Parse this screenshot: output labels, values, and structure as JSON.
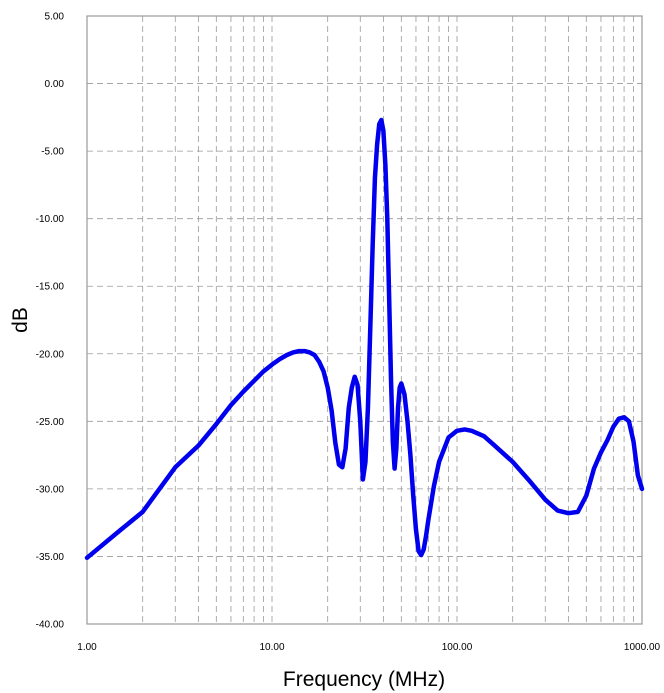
{
  "chart_data": {
    "type": "line",
    "title": "",
    "xlabel": "Frequency (MHz)",
    "ylabel": "dB",
    "x_scale": "log",
    "xlim": [
      1,
      1000
    ],
    "ylim": [
      -40,
      5
    ],
    "x_tick_labels": [
      "1.00",
      "10.00",
      "100.00",
      "1000.00"
    ],
    "y_tick_labels": [
      "5.00",
      "0.00",
      "-5.00",
      "-10.00",
      "-15.00",
      "-20.00",
      "-25.00",
      "-30.00",
      "-35.00",
      "-40.00"
    ],
    "grid": true,
    "grid_style": "dashed",
    "legend": "none",
    "series": [
      {
        "color": "#0000ee",
        "x": [
          1.0,
          1.5,
          2.0,
          3.0,
          4.0,
          5.0,
          6.0,
          7.0,
          8.0,
          9.0,
          10.0,
          11.0,
          12.0,
          13.0,
          14.0,
          15.0,
          16.0,
          17.0,
          18.0,
          19.0,
          20.0,
          21.0,
          22.0,
          23.0,
          24.0,
          25.0,
          26.0,
          27.0,
          28.0,
          29.0,
          30.0,
          31.0,
          32.0,
          33.0,
          34.0,
          35.0,
          36.0,
          37.0,
          38.0,
          39.0,
          40.0,
          41.0,
          42.0,
          43.0,
          44.0,
          45.0,
          46.0,
          47.0,
          48.0,
          49.0,
          50.0,
          52.0,
          54.0,
          56.0,
          58.0,
          60.0,
          62.0,
          64.0,
          66.0,
          68.0,
          70.0,
          75.0,
          80.0,
          90.0,
          100.0,
          110.0,
          120.0,
          140.0,
          160.0,
          200.0,
          250.0,
          300.0,
          350.0,
          400.0,
          450.0,
          500.0,
          550.0,
          600.0,
          650.0,
          700.0,
          750.0,
          800.0,
          850.0,
          900.0,
          950.0,
          1000.0
        ],
        "y": [
          -35.1,
          -33.1,
          -31.7,
          -28.4,
          -26.8,
          -25.2,
          -23.8,
          -22.8,
          -22.0,
          -21.3,
          -20.8,
          -20.4,
          -20.1,
          -19.9,
          -19.8,
          -19.8,
          -19.9,
          -20.1,
          -20.6,
          -21.3,
          -22.5,
          -24.2,
          -26.6,
          -28.2,
          -28.4,
          -27.0,
          -24.0,
          -22.5,
          -21.7,
          -22.3,
          -25.0,
          -29.3,
          -28.0,
          -24.0,
          -18.0,
          -12.0,
          -7.0,
          -4.5,
          -3.0,
          -2.7,
          -3.5,
          -6.0,
          -10.0,
          -16.0,
          -22.0,
          -26.5,
          -28.5,
          -27.0,
          -24.0,
          -22.5,
          -22.2,
          -23.0,
          -25.0,
          -27.5,
          -30.5,
          -33.0,
          -34.6,
          -34.9,
          -34.5,
          -33.5,
          -32.3,
          -29.8,
          -28.0,
          -26.2,
          -25.7,
          -25.6,
          -25.7,
          -26.1,
          -26.8,
          -28.0,
          -29.5,
          -30.8,
          -31.6,
          -31.8,
          -31.7,
          -30.5,
          -28.5,
          -27.3,
          -26.4,
          -25.4,
          -24.8,
          -24.7,
          -25.0,
          -26.5,
          -29.0,
          -30.0
        ]
      }
    ]
  }
}
